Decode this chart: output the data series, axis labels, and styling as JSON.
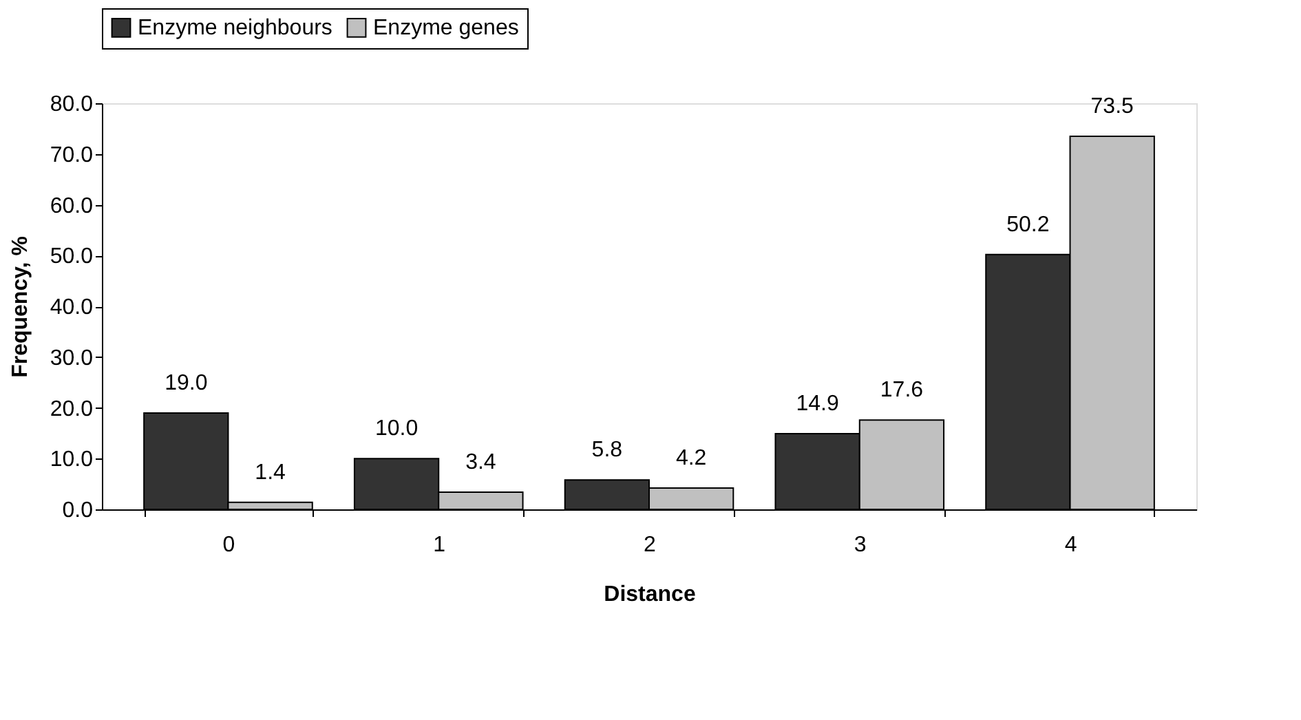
{
  "chart_data": {
    "type": "bar",
    "xlabel": "Distance",
    "ylabel": "Frequency, %",
    "categories": [
      "0",
      "1",
      "2",
      "3",
      "4"
    ],
    "series": [
      {
        "name": "Enzyme neighbours",
        "color": "#333333",
        "values": [
          19.0,
          10.0,
          5.8,
          14.9,
          50.2
        ],
        "value_labels": [
          "19.0",
          "10.0",
          "5.8",
          "14.9",
          "50.2"
        ]
      },
      {
        "name": "Enzyme genes",
        "color": "#c0c0c0",
        "values": [
          1.4,
          3.4,
          4.2,
          17.6,
          73.5
        ],
        "value_labels": [
          "1.4",
          "3.4",
          "4.2",
          "17.6",
          "73.5"
        ]
      }
    ],
    "ylim": [
      0,
      80
    ],
    "yticks": [
      {
        "value": 0,
        "label": "0.0"
      },
      {
        "value": 10,
        "label": "10.0"
      },
      {
        "value": 20,
        "label": "20.0"
      },
      {
        "value": 30,
        "label": "30.0"
      },
      {
        "value": 40,
        "label": "40.0"
      },
      {
        "value": 50,
        "label": "50.0"
      },
      {
        "value": 60,
        "label": "60.0"
      },
      {
        "value": 70,
        "label": "70.0"
      },
      {
        "value": 80,
        "label": "80.0"
      }
    ],
    "grid": false,
    "legend": "top"
  }
}
